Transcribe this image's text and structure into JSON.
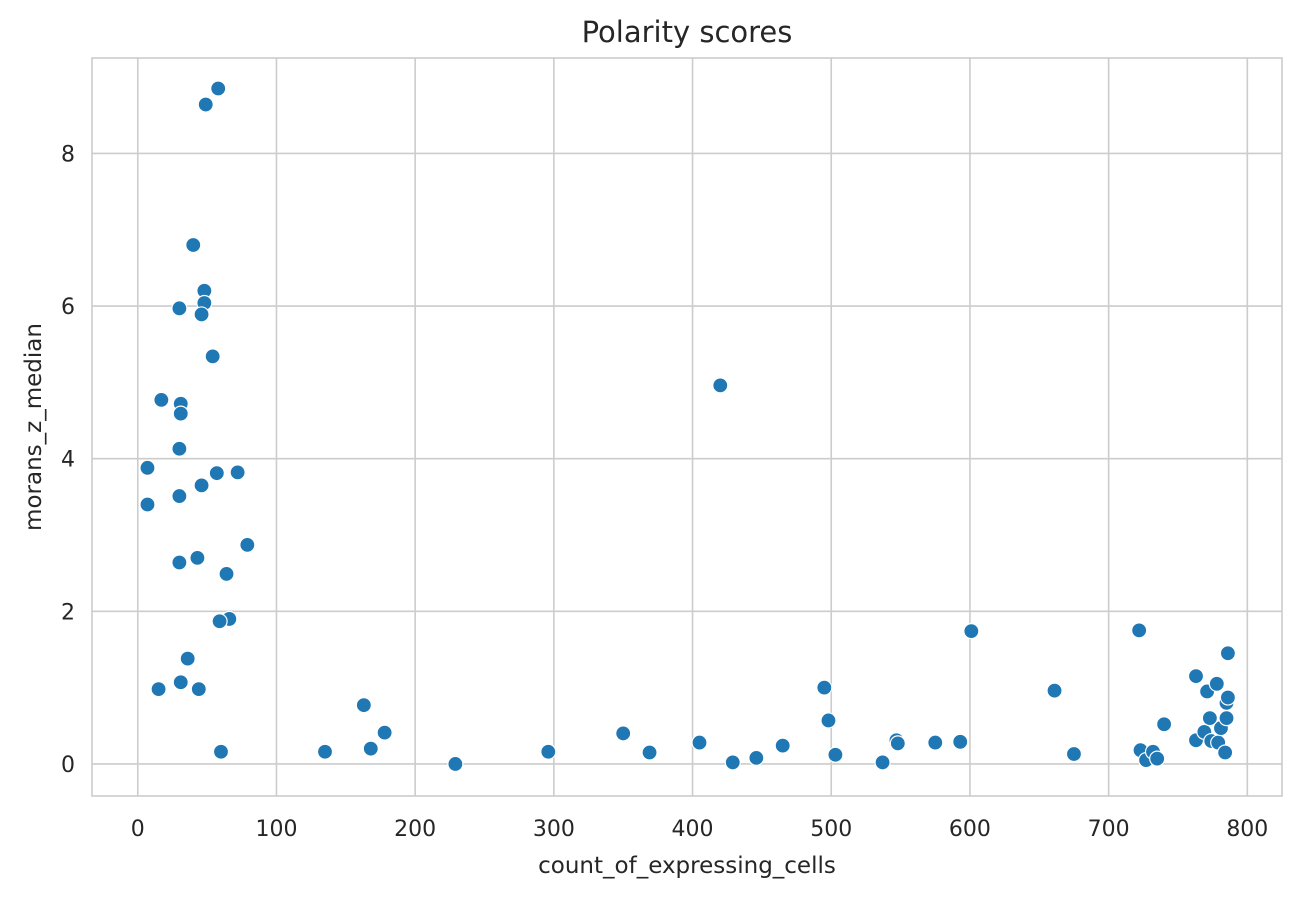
{
  "chart_data": {
    "type": "scatter",
    "title": "Polarity scores",
    "xlabel": "count_of_expressing_cells",
    "ylabel": "morans_z_median",
    "xlim": [
      -33,
      825
    ],
    "ylim": [
      -0.42,
      9.25
    ],
    "xticks": [
      0,
      100,
      200,
      300,
      400,
      500,
      600,
      700,
      800
    ],
    "yticks": [
      0,
      2,
      4,
      6,
      8
    ],
    "grid": true,
    "color": "#1f77b4",
    "points": [
      {
        "x": 58,
        "y": 8.85
      },
      {
        "x": 49,
        "y": 8.64
      },
      {
        "x": 40,
        "y": 6.8
      },
      {
        "x": 48,
        "y": 6.2
      },
      {
        "x": 30,
        "y": 5.97
      },
      {
        "x": 48,
        "y": 6.04
      },
      {
        "x": 46,
        "y": 5.89
      },
      {
        "x": 54,
        "y": 5.34
      },
      {
        "x": 17,
        "y": 4.77
      },
      {
        "x": 31,
        "y": 4.72
      },
      {
        "x": 31,
        "y": 4.59
      },
      {
        "x": 30,
        "y": 4.13
      },
      {
        "x": 7,
        "y": 3.88
      },
      {
        "x": 57,
        "y": 3.81
      },
      {
        "x": 72,
        "y": 3.82
      },
      {
        "x": 46,
        "y": 3.65
      },
      {
        "x": 30,
        "y": 3.51
      },
      {
        "x": 7,
        "y": 3.4
      },
      {
        "x": 79,
        "y": 2.87
      },
      {
        "x": 43,
        "y": 2.7
      },
      {
        "x": 30,
        "y": 2.64
      },
      {
        "x": 64,
        "y": 2.49
      },
      {
        "x": 66,
        "y": 1.9
      },
      {
        "x": 59,
        "y": 1.87
      },
      {
        "x": 36,
        "y": 1.38
      },
      {
        "x": 31,
        "y": 1.07
      },
      {
        "x": 15,
        "y": 0.98
      },
      {
        "x": 44,
        "y": 0.98
      },
      {
        "x": 60,
        "y": 0.16
      },
      {
        "x": 135,
        "y": 0.16
      },
      {
        "x": 163,
        "y": 0.77
      },
      {
        "x": 168,
        "y": 0.2
      },
      {
        "x": 178,
        "y": 0.41
      },
      {
        "x": 229,
        "y": 0.0
      },
      {
        "x": 296,
        "y": 0.16
      },
      {
        "x": 350,
        "y": 0.4
      },
      {
        "x": 369,
        "y": 0.15
      },
      {
        "x": 405,
        "y": 0.28
      },
      {
        "x": 420,
        "y": 4.96
      },
      {
        "x": 429,
        "y": 0.02
      },
      {
        "x": 446,
        "y": 0.08
      },
      {
        "x": 465,
        "y": 0.24
      },
      {
        "x": 495,
        "y": 1.0
      },
      {
        "x": 498,
        "y": 0.57
      },
      {
        "x": 503,
        "y": 0.12
      },
      {
        "x": 537,
        "y": 0.02
      },
      {
        "x": 547,
        "y": 0.31
      },
      {
        "x": 548,
        "y": 0.27
      },
      {
        "x": 575,
        "y": 0.28
      },
      {
        "x": 593,
        "y": 0.29
      },
      {
        "x": 601,
        "y": 1.74
      },
      {
        "x": 661,
        "y": 0.96
      },
      {
        "x": 675,
        "y": 0.13
      },
      {
        "x": 722,
        "y": 1.75
      },
      {
        "x": 723,
        "y": 0.18
      },
      {
        "x": 727,
        "y": 0.05
      },
      {
        "x": 732,
        "y": 0.16
      },
      {
        "x": 735,
        "y": 0.07
      },
      {
        "x": 740,
        "y": 0.52
      },
      {
        "x": 763,
        "y": 1.15
      },
      {
        "x": 763,
        "y": 0.31
      },
      {
        "x": 769,
        "y": 0.42
      },
      {
        "x": 771,
        "y": 0.95
      },
      {
        "x": 773,
        "y": 0.6
      },
      {
        "x": 774,
        "y": 0.3
      },
      {
        "x": 778,
        "y": 1.05
      },
      {
        "x": 779,
        "y": 0.28
      },
      {
        "x": 781,
        "y": 0.47
      },
      {
        "x": 784,
        "y": 0.15
      },
      {
        "x": 785,
        "y": 0.8
      },
      {
        "x": 785,
        "y": 0.6
      },
      {
        "x": 786,
        "y": 0.87
      },
      {
        "x": 786,
        "y": 1.45
      }
    ]
  }
}
